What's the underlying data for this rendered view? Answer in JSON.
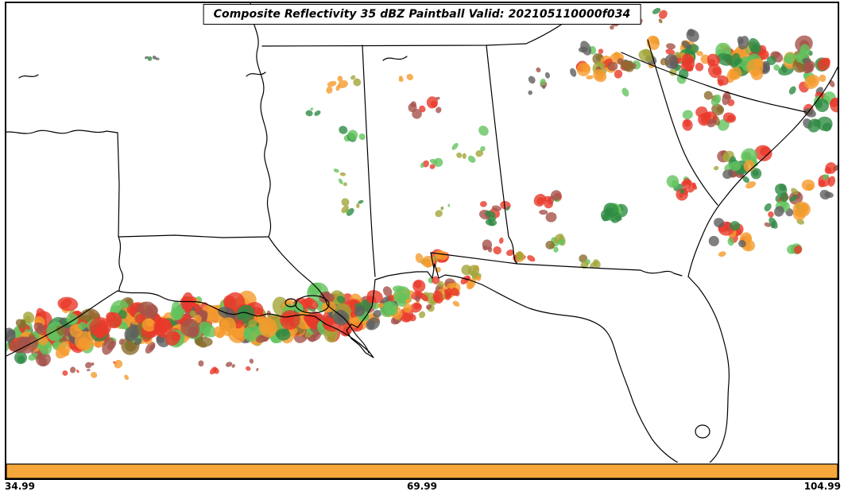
{
  "figure": {
    "title": "Composite Reflectivity 35 dBZ Paintball Valid: 202105110000f034",
    "axis": {
      "left_label": "34.99",
      "center_label": "69.99",
      "right_label": "104.99"
    },
    "colorbar": {
      "fill": "#F6A73C",
      "border": "#000000"
    }
  },
  "chart_data": {
    "type": "scatter",
    "subtype": "ensemble-paintball-weather-map",
    "title": "Composite Reflectivity 35 dBZ Paintball Valid: 202105110000f034",
    "variable": "Composite Reflectivity",
    "threshold": "35 dBZ",
    "valid": "202105110000f034",
    "x_tick_labels": [
      "34.99",
      "69.99",
      "104.99"
    ],
    "colorbar_color": "#F6A73C",
    "member_colors": [
      "#e8392b",
      "#f59b2d",
      "#63c35e",
      "#2f8b45",
      "#a3a53a",
      "#a5524a",
      "#5f5f5f",
      "#8a6d2e"
    ],
    "palettes": {
      "band": [
        0,
        0,
        0,
        1,
        1,
        1,
        5,
        5,
        2,
        2,
        4,
        3,
        7,
        6,
        0,
        1
      ],
      "ne": [
        0,
        1,
        2,
        3,
        3,
        4,
        5,
        6,
        7,
        2,
        1,
        0,
        5
      ],
      "atl": [
        2,
        3,
        0,
        6,
        1,
        5,
        2,
        3,
        4
      ]
    },
    "cluster_fields": [
      "cx",
      "cy",
      "spread_x",
      "spread_y",
      "count",
      "r_min",
      "r_max",
      "palette"
    ],
    "clusters": [
      [
        35,
        425,
        42,
        36,
        50,
        4,
        13,
        "band"
      ],
      [
        105,
        415,
        48,
        36,
        58,
        4,
        13,
        "band"
      ],
      [
        175,
        407,
        48,
        34,
        58,
        4,
        13,
        "band"
      ],
      [
        245,
        404,
        48,
        32,
        58,
        4,
        13,
        "band"
      ],
      [
        315,
        401,
        48,
        32,
        58,
        4,
        13,
        "band"
      ],
      [
        385,
        399,
        48,
        31,
        58,
        4,
        13,
        "band"
      ],
      [
        450,
        396,
        44,
        29,
        48,
        4,
        12,
        "band"
      ],
      [
        512,
        382,
        38,
        26,
        32,
        3,
        10,
        "band"
      ],
      [
        556,
        368,
        24,
        22,
        16,
        3,
        9,
        [
          0,
          1,
          4,
          5,
          2
        ]
      ],
      [
        596,
        344,
        18,
        16,
        8,
        3,
        8,
        [
          1,
          0,
          4
        ]
      ],
      [
        120,
        466,
        70,
        16,
        10,
        2,
        6,
        [
          0,
          5,
          1
        ]
      ],
      [
        300,
        462,
        70,
        14,
        8,
        2,
        6,
        [
          0,
          5
        ]
      ],
      [
        545,
        331,
        22,
        13,
        9,
        3,
        9,
        [
          1,
          1,
          0,
          4
        ]
      ],
      [
        567,
        369,
        9,
        15,
        6,
        4,
        9,
        [
          0,
          0,
          1
        ]
      ],
      [
        760,
        85,
        42,
        34,
        26,
        3,
        10,
        "ne"
      ],
      [
        850,
        74,
        44,
        33,
        33,
        3,
        11,
        "ne"
      ],
      [
        935,
        76,
        44,
        33,
        38,
        3,
        11,
        "ne"
      ],
      [
        1012,
        86,
        38,
        33,
        28,
        3,
        11,
        "ne"
      ],
      [
        800,
        26,
        55,
        16,
        10,
        2,
        7,
        [
          0,
          5,
          3,
          7
        ]
      ],
      [
        1035,
        140,
        22,
        28,
        13,
        3,
        9,
        [
          2,
          3,
          0,
          6
        ]
      ],
      [
        900,
        140,
        38,
        28,
        16,
        3,
        9,
        [
          0,
          2,
          5,
          7
        ]
      ],
      [
        935,
        210,
        38,
        32,
        22,
        3,
        10,
        "atl"
      ],
      [
        990,
        263,
        42,
        32,
        22,
        3,
        10,
        "atl"
      ],
      [
        925,
        295,
        32,
        28,
        15,
        3,
        9,
        [
          2,
          3,
          0,
          6,
          1
        ]
      ],
      [
        860,
        230,
        22,
        22,
        9,
        3,
        8,
        [
          3,
          2,
          0
        ]
      ],
      [
        1045,
        228,
        12,
        28,
        8,
        3,
        8,
        [
          0,
          2,
          6
        ]
      ],
      [
        995,
        315,
        16,
        12,
        5,
        3,
        7,
        [
          0,
          2
        ]
      ],
      [
        430,
        106,
        26,
        12,
        7,
        3,
        8,
        [
          1,
          1,
          1,
          4
        ]
      ],
      [
        505,
        100,
        12,
        8,
        3,
        2,
        5,
        [
          1
        ]
      ],
      [
        540,
        136,
        28,
        18,
        7,
        3,
        8,
        [
          0,
          0,
          5
        ]
      ],
      [
        445,
        170,
        20,
        13,
        5,
        3,
        7,
        [
          2,
          3
        ]
      ],
      [
        545,
        200,
        20,
        15,
        5,
        3,
        7,
        [
          0,
          2
        ]
      ],
      [
        590,
        185,
        25,
        30,
        7,
        2,
        6,
        [
          2,
          0,
          4
        ]
      ],
      [
        430,
        225,
        20,
        15,
        4,
        2,
        5,
        [
          2,
          4
        ]
      ],
      [
        450,
        262,
        28,
        9,
        6,
        2,
        6,
        [
          4,
          2,
          3
        ]
      ],
      [
        550,
        262,
        18,
        11,
        4,
        2,
        6,
        [
          2,
          4
        ]
      ],
      [
        630,
        262,
        26,
        19,
        9,
        3,
        8,
        [
          0,
          5,
          3
        ]
      ],
      [
        700,
        255,
        26,
        20,
        9,
        3,
        8,
        [
          0,
          5,
          2
        ]
      ],
      [
        775,
        265,
        16,
        13,
        5,
        7,
        12,
        [
          3,
          3,
          3,
          2
        ]
      ],
      [
        700,
        305,
        23,
        14,
        7,
        3,
        7,
        [
          4,
          7,
          2
        ]
      ],
      [
        745,
        325,
        18,
        12,
        5,
        3,
        7,
        [
          4,
          2,
          7
        ]
      ],
      [
        655,
        325,
        28,
        13,
        9,
        3,
        8,
        [
          0,
          1,
          4,
          5
        ]
      ],
      [
        620,
        310,
        13,
        11,
        5,
        3,
        7,
        [
          0,
          5
        ]
      ],
      [
        390,
        140,
        13,
        9,
        3,
        2,
        5,
        [
          2,
          3
        ]
      ],
      [
        680,
        100,
        23,
        18,
        7,
        2,
        6,
        [
          6,
          0,
          2,
          5
        ]
      ],
      [
        190,
        72,
        13,
        5,
        4,
        2,
        4,
        [
          3,
          6
        ]
      ]
    ],
    "layout": {
      "grid": false,
      "legend": "none",
      "map_region": "Southeast United States / Gulf Coast"
    }
  }
}
